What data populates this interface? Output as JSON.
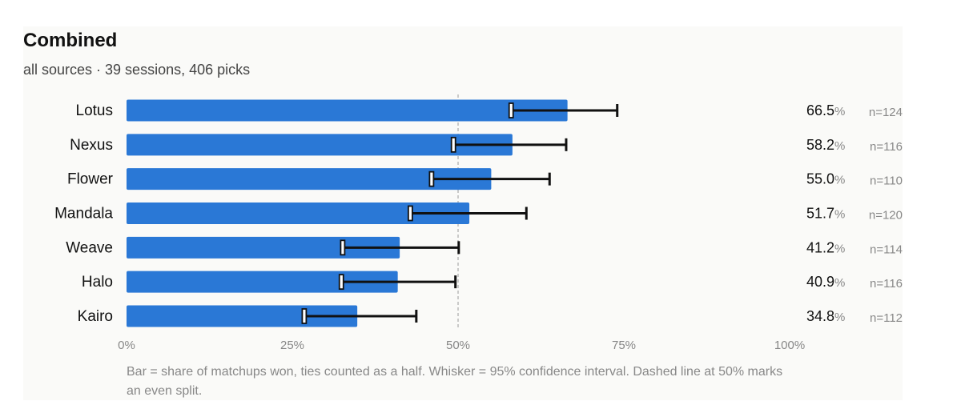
{
  "title": "Combined",
  "subtitle": "all sources · 39 sessions, 406 picks",
  "footnote": "Bar = share of matchups won, ties counted as a half. Whisker = 95% confidence interval. Dashed line at 50% marks an even split.",
  "colors": {
    "bar": "#2a78d6",
    "whisker": "#111111",
    "refline": "#aaaaaa",
    "axis_text": "#888888",
    "panel": "#fafaf8"
  },
  "chart_data": {
    "type": "bar",
    "orientation": "horizontal",
    "title": "Combined",
    "subtitle": "all sources · 39 sessions, 406 picks",
    "xlim": [
      0,
      100
    ],
    "x_ticks": [
      "0%",
      "25%",
      "50%",
      "75%",
      "100%"
    ],
    "x_tick_values": [
      0,
      25,
      50,
      75,
      100
    ],
    "reference_line": 50,
    "value_suffix": "%",
    "categories": [
      "Lotus",
      "Nexus",
      "Flower",
      "Mandala",
      "Weave",
      "Halo",
      "Kairo"
    ],
    "values": [
      66.5,
      58.2,
      55.0,
      51.7,
      41.2,
      40.9,
      34.8
    ],
    "value_labels": [
      "66.5",
      "58.2",
      "55.0",
      "51.7",
      "41.2",
      "40.9",
      "34.8"
    ],
    "ci_low": [
      58.0,
      49.3,
      46.0,
      42.8,
      32.6,
      32.4,
      26.8
    ],
    "ci_high": [
      74.0,
      66.3,
      63.8,
      60.3,
      50.1,
      49.6,
      43.7
    ],
    "n_labels": [
      "n=124",
      "n=116",
      "n=110",
      "n=120",
      "n=114",
      "n=116",
      "n=112"
    ]
  }
}
